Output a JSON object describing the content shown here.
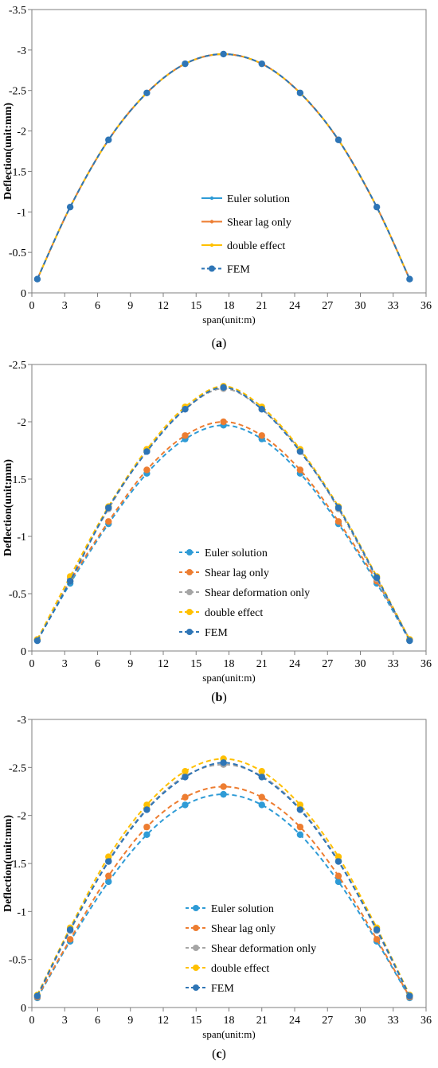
{
  "panels": [
    {
      "caption_open": "(",
      "caption_letter": "a",
      "caption_close": ")",
      "chart_data": {
        "type": "line",
        "xlabel": "span(unit:m)",
        "ylabel": "Deflection(unit:mm)",
        "xlim": [
          0,
          36
        ],
        "ylim": [
          -3.5,
          0
        ],
        "xticks": [
          0,
          3,
          6,
          9,
          12,
          15,
          18,
          21,
          24,
          27,
          30,
          33,
          36
        ],
        "yticks": [
          0,
          -0.5,
          -1,
          -1.5,
          -2,
          -2.5,
          -3,
          -3.5
        ],
        "x": [
          0.5,
          3.5,
          7,
          10.5,
          14,
          17.5,
          21,
          24.5,
          28,
          31.5,
          34.5
        ],
        "legend_position": "lower-center",
        "series": [
          {
            "name": "Euler solution",
            "color": "#2e9bd6",
            "style": "line",
            "marker_size": "small",
            "values": [
              -0.17,
              -1.06,
              -1.89,
              -2.47,
              -2.83,
              -2.95,
              -2.83,
              -2.47,
              -1.89,
              -1.06,
              -0.17
            ]
          },
          {
            "name": "Shear lag only",
            "color": "#ed7d31",
            "style": "line",
            "marker_size": "small",
            "values": [
              -0.17,
              -1.06,
              -1.89,
              -2.47,
              -2.83,
              -2.95,
              -2.83,
              -2.47,
              -1.89,
              -1.06,
              -0.17
            ]
          },
          {
            "name": "double effect",
            "color": "#ffc000",
            "style": "line",
            "marker_size": "small",
            "values": [
              -0.17,
              -1.06,
              -1.89,
              -2.47,
              -2.83,
              -2.95,
              -2.83,
              -2.47,
              -1.89,
              -1.06,
              -0.17
            ]
          },
          {
            "name": "FEM",
            "color": "#2e75b6",
            "style": "dashed",
            "marker_size": "large",
            "values": [
              -0.17,
              -1.06,
              -1.89,
              -2.47,
              -2.83,
              -2.95,
              -2.83,
              -2.47,
              -1.89,
              -1.06,
              -0.17
            ]
          }
        ]
      }
    },
    {
      "caption_open": "(",
      "caption_letter": "b",
      "caption_close": ")",
      "chart_data": {
        "type": "line",
        "xlabel": "span(unit:m)",
        "ylabel": "Deflection(unit:mm)",
        "xlim": [
          0,
          36
        ],
        "ylim": [
          -2.5,
          0
        ],
        "xticks": [
          0,
          3,
          6,
          9,
          12,
          15,
          18,
          21,
          24,
          27,
          30,
          33,
          36
        ],
        "yticks": [
          0,
          -0.5,
          -1,
          -1.5,
          -2,
          -2.5
        ],
        "x": [
          0.5,
          3.5,
          7,
          10.5,
          14,
          17.5,
          21,
          24.5,
          28,
          31.5,
          34.5
        ],
        "legend_position": "lower-center",
        "series": [
          {
            "name": "Euler solution",
            "color": "#2e9bd6",
            "style": "dashed",
            "marker_size": "large",
            "values": [
              -0.09,
              -0.59,
              -1.11,
              -1.55,
              -1.85,
              -1.97,
              -1.85,
              -1.55,
              -1.11,
              -0.59,
              -0.09
            ]
          },
          {
            "name": "Shear lag only",
            "color": "#ed7d31",
            "style": "dashed",
            "marker_size": "large",
            "values": [
              -0.1,
              -0.61,
              -1.13,
              -1.58,
              -1.88,
              -2.0,
              -1.88,
              -1.58,
              -1.13,
              -0.61,
              -0.1
            ]
          },
          {
            "name": "Shear deformation only",
            "color": "#a5a5a5",
            "style": "dashed",
            "marker_size": "large",
            "values": [
              -0.1,
              -0.63,
              -1.24,
              -1.75,
              -2.11,
              -2.29,
              -2.11,
              -1.75,
              -1.24,
              -0.63,
              -0.1
            ]
          },
          {
            "name": "double effect",
            "color": "#ffc000",
            "style": "dashed",
            "marker_size": "large",
            "values": [
              -0.1,
              -0.65,
              -1.26,
              -1.76,
              -2.13,
              -2.31,
              -2.13,
              -1.76,
              -1.26,
              -0.65,
              -0.1
            ]
          },
          {
            "name": "FEM",
            "color": "#2e75b6",
            "style": "dashed",
            "marker_size": "large",
            "values": [
              -0.09,
              -0.61,
              -1.25,
              -1.74,
              -2.11,
              -2.3,
              -2.11,
              -1.74,
              -1.25,
              -0.64,
              -0.09
            ]
          }
        ]
      }
    },
    {
      "caption_open": "(",
      "caption_letter": "c",
      "caption_close": ")",
      "chart_data": {
        "type": "line",
        "xlabel": "span(unit:m)",
        "ylabel": "Deflection(unit:mm)",
        "xlim": [
          0,
          36
        ],
        "ylim": [
          -3,
          0
        ],
        "xticks": [
          0,
          3,
          6,
          9,
          12,
          15,
          18,
          21,
          24,
          27,
          30,
          33,
          36
        ],
        "yticks": [
          0,
          -0.5,
          -1,
          -1.5,
          -2,
          -2.5,
          -3
        ],
        "x": [
          0.5,
          3.5,
          7,
          10.5,
          14,
          17.5,
          21,
          24.5,
          28,
          31.5,
          34.5
        ],
        "legend_position": "lower-center",
        "series": [
          {
            "name": "Euler solution",
            "color": "#2e9bd6",
            "style": "dashed",
            "marker_size": "large",
            "values": [
              -0.1,
              -0.69,
              -1.31,
              -1.8,
              -2.11,
              -2.22,
              -2.11,
              -1.8,
              -1.31,
              -0.69,
              -0.1
            ]
          },
          {
            "name": "Shear lag only",
            "color": "#ed7d31",
            "style": "dashed",
            "marker_size": "large",
            "values": [
              -0.11,
              -0.71,
              -1.37,
              -1.88,
              -2.19,
              -2.3,
              -2.19,
              -1.88,
              -1.37,
              -0.71,
              -0.11
            ]
          },
          {
            "name": "Shear deformation only",
            "color": "#a5a5a5",
            "style": "dashed",
            "marker_size": "large",
            "values": [
              -0.12,
              -0.8,
              -1.53,
              -2.07,
              -2.41,
              -2.53,
              -2.41,
              -2.07,
              -1.53,
              -0.8,
              -0.12
            ]
          },
          {
            "name": "double effect",
            "color": "#ffc000",
            "style": "dashed",
            "marker_size": "large",
            "values": [
              -0.13,
              -0.83,
              -1.57,
              -2.11,
              -2.46,
              -2.59,
              -2.46,
              -2.11,
              -1.57,
              -0.83,
              -0.13
            ]
          },
          {
            "name": "FEM",
            "color": "#2e75b6",
            "style": "dashed",
            "marker_size": "large",
            "values": [
              -0.12,
              -0.81,
              -1.52,
              -2.06,
              -2.4,
              -2.55,
              -2.4,
              -2.06,
              -1.52,
              -0.81,
              -0.12
            ]
          }
        ]
      }
    }
  ]
}
